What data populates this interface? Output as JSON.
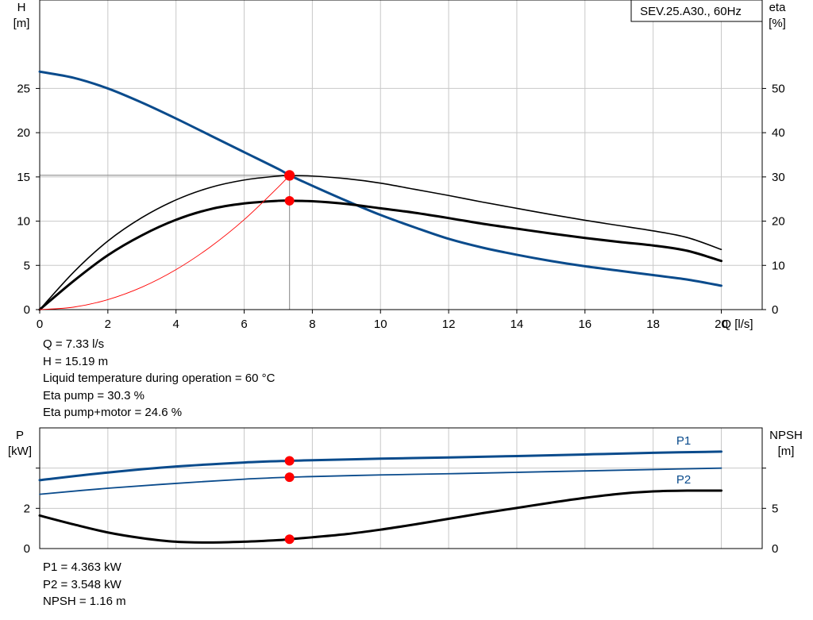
{
  "chart_data": [
    {
      "type": "line",
      "title": "SEV.25.A30., 60Hz",
      "xlabel": "Q [l/s]",
      "ylabel_left": [
        "H",
        "[m]"
      ],
      "ylabel_right": [
        "eta",
        "[%]"
      ],
      "xlim": [
        0,
        21.2
      ],
      "ylim_left": [
        0,
        35
      ],
      "ylim_right": [
        0,
        70
      ],
      "x_ticks": [
        "0",
        "2",
        "4",
        "6",
        "8",
        "10",
        "12",
        "14",
        "16",
        "18",
        "20"
      ],
      "y_ticks_left": [
        "0",
        "5",
        "10",
        "15",
        "20",
        "25"
      ],
      "y_ticks_right": [
        "0",
        "10",
        "20",
        "30",
        "40",
        "50"
      ],
      "grid": true,
      "series": [
        {
          "axis": "left",
          "color": "#0a4b8c",
          "x": [
            0,
            1,
            2,
            3,
            4,
            5,
            6,
            7,
            7.33,
            8,
            9,
            10,
            11,
            12,
            13,
            14,
            15,
            16,
            17,
            18,
            19,
            20
          ],
          "y": [
            26.9,
            26.2,
            25.0,
            23.4,
            21.6,
            19.7,
            17.8,
            15.9,
            15.19,
            14.0,
            12.3,
            10.7,
            9.3,
            8.0,
            7.0,
            6.2,
            5.5,
            4.9,
            4.4,
            3.9,
            3.4,
            2.7
          ]
        },
        {
          "axis": "right",
          "color": "#000000",
          "x": [
            0,
            1,
            2,
            3,
            4,
            5,
            6,
            7,
            7.33,
            8,
            9,
            10,
            11,
            12,
            13,
            14,
            15,
            16,
            17,
            18,
            19,
            20
          ],
          "y": [
            0,
            8.5,
            15.5,
            20.8,
            24.8,
            27.6,
            29.3,
            30.2,
            30.3,
            30.2,
            29.6,
            28.6,
            27.2,
            25.8,
            24.3,
            22.9,
            21.5,
            20.2,
            19.0,
            17.8,
            16.3,
            13.6
          ]
        },
        {
          "axis": "right",
          "color": "#000000",
          "x": [
            0,
            1,
            2,
            3,
            4,
            5,
            6,
            7,
            7.33,
            8,
            9,
            10,
            11,
            12,
            13,
            14,
            15,
            16,
            17,
            18,
            19,
            20
          ],
          "y": [
            0,
            6.5,
            12.3,
            16.8,
            20.3,
            22.7,
            24.0,
            24.6,
            24.6,
            24.5,
            23.9,
            22.9,
            21.9,
            20.7,
            19.4,
            18.3,
            17.2,
            16.2,
            15.3,
            14.5,
            13.3,
            11.0
          ]
        },
        {
          "axis": "left",
          "color": "#ff0000",
          "x": [
            0,
            1,
            2,
            3,
            4,
            5,
            6,
            7,
            7.33
          ],
          "y": [
            0,
            0.28,
            1.13,
            2.54,
            4.52,
            7.07,
            10.17,
            13.85,
            15.19
          ]
        }
      ],
      "operating_point": {
        "x": 7.33,
        "H": 15.19,
        "eta_pump": 30.3,
        "eta_total": 24.6
      }
    },
    {
      "type": "line",
      "xlabel": "",
      "ylabel_left": [
        "P",
        "[kW]"
      ],
      "ylabel_right": [
        "NPSH",
        "[m]"
      ],
      "xlim": [
        0,
        21.2
      ],
      "ylim_left": [
        0,
        6
      ],
      "ylim_right": [
        0,
        15
      ],
      "y_ticks_left": [
        "0",
        "2"
      ],
      "y_ticks_right": [
        "0",
        "5"
      ],
      "grid": true,
      "series": [
        {
          "name": "P1",
          "axis": "left",
          "color": "#0a4b8c",
          "x": [
            0,
            2,
            4,
            6,
            7.33,
            8,
            10,
            12,
            14,
            16,
            18,
            20
          ],
          "y": [
            3.4,
            3.78,
            4.08,
            4.28,
            4.363,
            4.39,
            4.47,
            4.53,
            4.6,
            4.68,
            4.76,
            4.82
          ]
        },
        {
          "name": "P2",
          "axis": "left",
          "color": "#0a4b8c",
          "x": [
            0,
            2,
            4,
            6,
            7.33,
            8,
            10,
            12,
            14,
            16,
            18,
            20
          ],
          "y": [
            2.7,
            3.0,
            3.24,
            3.45,
            3.548,
            3.58,
            3.66,
            3.72,
            3.79,
            3.86,
            3.93,
            4.0
          ]
        },
        {
          "axis": "right",
          "color": "#000000",
          "x": [
            0,
            1,
            2,
            3,
            4,
            5,
            6,
            7,
            7.33,
            8,
            9,
            10,
            11,
            12,
            13,
            14,
            15,
            16,
            17,
            18,
            19,
            20
          ],
          "y": [
            4.1,
            3.0,
            2.0,
            1.3,
            0.85,
            0.75,
            0.85,
            1.05,
            1.16,
            1.4,
            1.8,
            2.35,
            3.0,
            3.7,
            4.4,
            5.05,
            5.7,
            6.3,
            6.8,
            7.1,
            7.2,
            7.2
          ]
        }
      ],
      "operating_point": {
        "x": 7.33,
        "P1": 4.363,
        "P2": 3.548,
        "NPSH": 1.16
      }
    }
  ],
  "info_top": [
    "Q = 7.33 l/s",
    "H = 15.19 m",
    "Liquid temperature during operation = 60 °C",
    "Eta pump = 30.3 %",
    "Eta pump+motor = 24.6 %"
  ],
  "info_bottom": [
    "P1 = 4.363 kW",
    "P2 = 3.548 kW",
    "NPSH = 1.16 m"
  ],
  "colors": {
    "pump_curve": "#0a4b8c",
    "eta": "#000000",
    "system_curve": "#ff0000",
    "marker": "#ff0000",
    "grid": "#c8c8c8"
  }
}
